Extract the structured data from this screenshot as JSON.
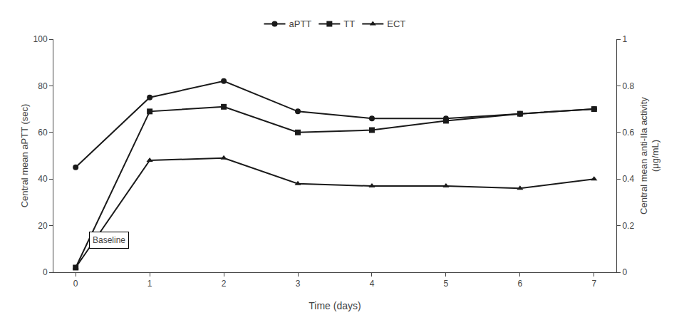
{
  "chart_data": {
    "type": "line",
    "xlabel": "Time (days)",
    "ylabel": "Central mean aPTT (sec)",
    "y2label": "Central mean anti-IIa activity\n(μg/mL)",
    "x": [
      0,
      1,
      2,
      3,
      4,
      5,
      6,
      7
    ],
    "series": [
      {
        "name": "aPTT",
        "color": "#1a1a1a",
        "marker": "circle",
        "values": [
          45,
          75,
          82,
          69,
          66,
          66,
          68,
          70
        ]
      },
      {
        "name": "TT",
        "color": "#1a1a1a",
        "marker": "square",
        "values": [
          2,
          69,
          71,
          60,
          61,
          65,
          68,
          70
        ]
      },
      {
        "name": "ECT",
        "color": "#1a1a1a",
        "marker": "triangle-up",
        "values": [
          2,
          48,
          49,
          38,
          37,
          37,
          36,
          40
        ]
      }
    ],
    "xlim": [
      -0.3,
      7.3
    ],
    "xticks": [
      0,
      1,
      2,
      3,
      4,
      5,
      6,
      7
    ],
    "ylim": [
      0,
      100
    ],
    "yticks": [
      0,
      20,
      40,
      60,
      80,
      100
    ],
    "y2lim": [
      0,
      1
    ],
    "y2ticks": [
      0,
      0.2,
      0.4,
      0.6,
      0.8,
      1
    ],
    "grid": false,
    "legend": "top",
    "annotations": [
      {
        "text": "Baseline",
        "x": 0.18,
        "y": 10
      }
    ]
  }
}
